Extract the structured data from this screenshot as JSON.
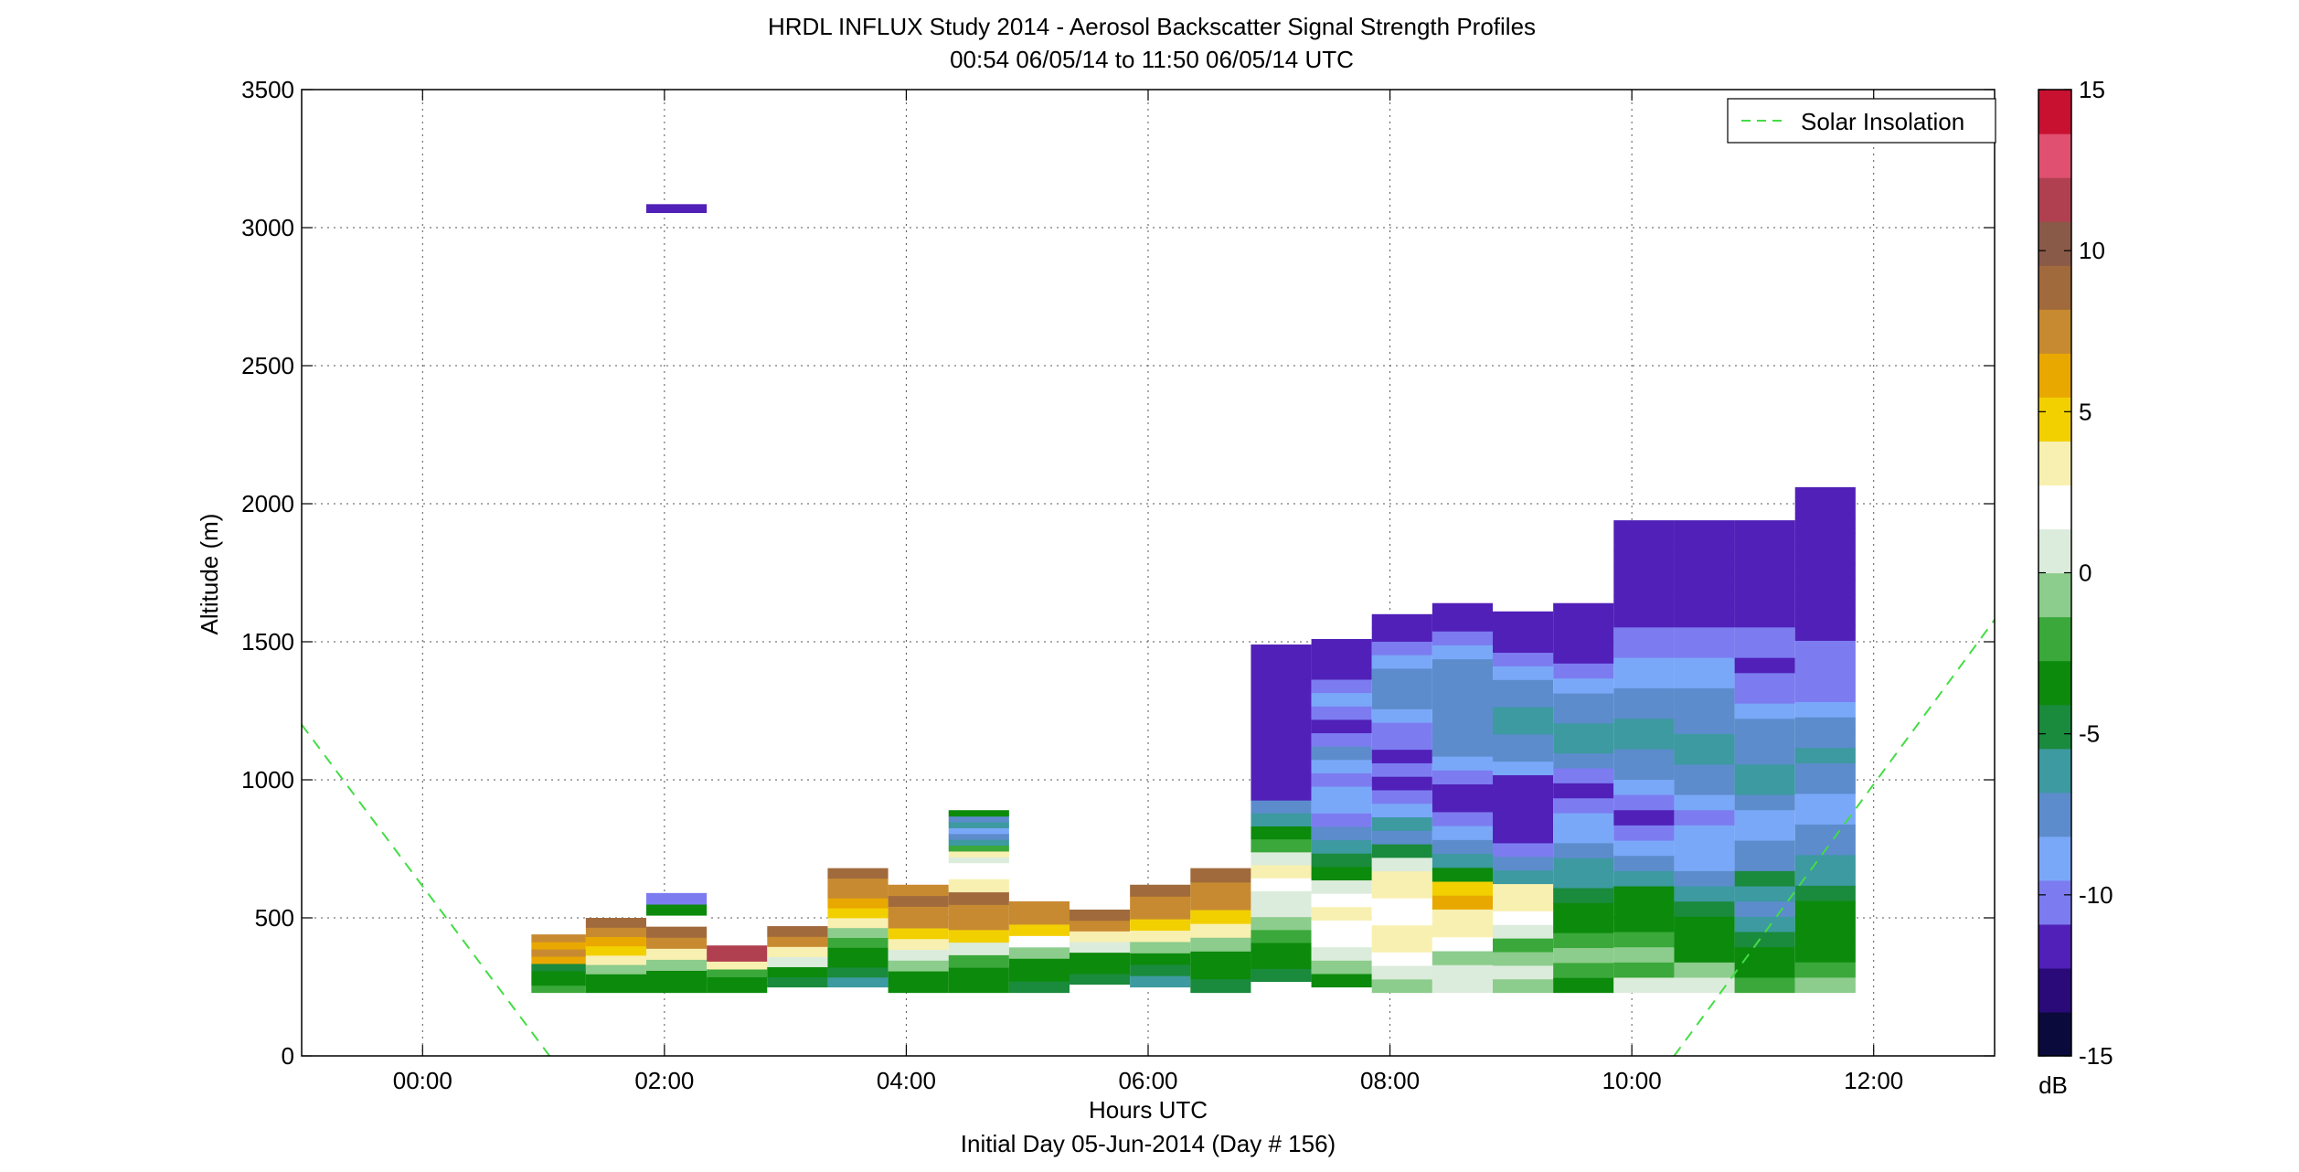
{
  "figure": {
    "title_line1": "HRDL INFLUX Study 2014 - Aerosol Backscatter Signal Strength Profiles",
    "title_line2": "00:54 06/05/14 to 11:50 06/05/14  UTC",
    "footer": "Initial Day 05-Jun-2014 (Day # 156)"
  },
  "chart_data": {
    "type": "heatmap",
    "title": "HRDL INFLUX Study 2014 - Aerosol Backscatter Signal Strength Profiles",
    "subtitle": "00:54 06/05/14 to 11:50 06/05/14  UTC",
    "xlabel": "Hours UTC",
    "ylabel": "Altitude (m)",
    "xlim": [
      -1,
      13
    ],
    "ylim": [
      0,
      3500
    ],
    "x_ticks": [
      0,
      2,
      4,
      6,
      8,
      10,
      12
    ],
    "x_tick_labels": [
      "00:00",
      "02:00",
      "04:00",
      "06:00",
      "08:00",
      "10:00",
      "12:00"
    ],
    "y_ticks": [
      0,
      500,
      1000,
      1500,
      2000,
      2500,
      3000,
      3500
    ],
    "y_tick_labels": [
      "0",
      "500",
      "1000",
      "1500",
      "2000",
      "2500",
      "3000",
      "3500"
    ],
    "grid": true,
    "colorbar": {
      "label": "dB",
      "min": -15,
      "max": 15,
      "ticks": [
        15,
        10,
        5,
        0,
        -5,
        -10,
        -15
      ],
      "tick_labels": [
        "15",
        "10",
        "5",
        "0",
        "-5",
        "-10",
        "-15"
      ],
      "colors": [
        "#0a0a3c",
        "#2a0a78",
        "#5020b8",
        "#7c7cf0",
        "#7aa8f8",
        "#5c8ccc",
        "#3c9aa0",
        "#1a8a3c",
        "#0c8a0c",
        "#3aa83a",
        "#8ccc8c",
        "#dcecdc",
        "#ffffff",
        "#f8f0b0",
        "#f2d000",
        "#e8a800",
        "#c88a30",
        "#a06a3c",
        "#8a5a48",
        "#b04050",
        "#e05070",
        "#c81030"
      ]
    },
    "series": [
      {
        "name": "Solar Insolation",
        "style": "dashed",
        "color": "#44dd44",
        "segments": [
          {
            "x": [
              -1.0,
              1.05
            ],
            "y": [
              1200,
              0
            ]
          },
          {
            "x": [
              10.35,
              13.0
            ],
            "y": [
              0,
              1580
            ]
          }
        ]
      }
    ],
    "legend": {
      "entries": [
        "Solar Insolation"
      ],
      "position": "top-right"
    },
    "profiles": [
      {
        "x0": 0.9,
        "x1": 1.35,
        "bottom": 230,
        "top": 440,
        "bands": [
          [
            -2,
            -4,
            -3,
            -5
          ],
          [
            6,
            7,
            6,
            8
          ]
        ]
      },
      {
        "x0": 1.35,
        "x1": 1.85,
        "bottom": 230,
        "top": 500,
        "bands": [
          [
            -4,
            -3,
            -1,
            3
          ],
          [
            5,
            6,
            7,
            9
          ]
        ]
      },
      {
        "x0": 1.85,
        "x1": 2.35,
        "bottom": 230,
        "top": 590,
        "bands": [
          [
            -4,
            -3,
            -1,
            4
          ],
          [
            8,
            9,
            2,
            -4
          ],
          [
            -10
          ]
        ]
      },
      {
        "x0": 2.35,
        "x1": 2.85,
        "bottom": 230,
        "top": 400,
        "bands": [
          [
            -4,
            -3,
            -2,
            3,
            11,
            12
          ]
        ]
      },
      {
        "x0": 2.85,
        "x1": 3.35,
        "bottom": 250,
        "top": 470,
        "bands": [
          [
            -5,
            -3,
            1,
            4,
            7,
            9
          ]
        ]
      },
      {
        "x0": 3.35,
        "x1": 3.85,
        "bottom": 250,
        "top": 680,
        "bands": [
          [
            -6,
            -5,
            -4,
            -3,
            -2,
            -1,
            3,
            5,
            6,
            7,
            8,
            9
          ]
        ]
      },
      {
        "x0": 3.85,
        "x1": 4.35,
        "bottom": 230,
        "top": 620,
        "bands": [
          [
            -4,
            -3,
            -1,
            0,
            3,
            5,
            7,
            8,
            9,
            8
          ]
        ]
      },
      {
        "x0": 4.35,
        "x1": 4.85,
        "bottom": 230,
        "top": 640,
        "bands": [
          [
            -4,
            -3,
            -2,
            1,
            5,
            7,
            8,
            9,
            4
          ]
        ]
      },
      {
        "x0": 4.35,
        "x1": 4.85,
        "bottom": 700,
        "top": 890,
        "bands": [
          [
            1,
            3,
            -2,
            -6,
            -8,
            -9,
            -6,
            -7,
            -3
          ]
        ]
      },
      {
        "x0": 4.85,
        "x1": 5.35,
        "bottom": 230,
        "top": 560,
        "bands": [
          [
            -5,
            -4,
            -3,
            -1,
            2,
            5,
            7,
            8
          ]
        ]
      },
      {
        "x0": 5.35,
        "x1": 5.85,
        "bottom": 260,
        "top": 530,
        "bands": [
          [
            -5,
            -4,
            -3,
            1,
            4,
            7,
            9
          ]
        ]
      },
      {
        "x0": 5.85,
        "x1": 6.35,
        "bottom": 250,
        "top": 620,
        "bands": [
          [
            -6,
            -5,
            -4,
            -1,
            3,
            5,
            7,
            8,
            9
          ]
        ]
      },
      {
        "x0": 6.35,
        "x1": 6.85,
        "bottom": 230,
        "top": 680,
        "bands": [
          [
            -5,
            -4,
            -3,
            -1,
            3,
            5,
            7,
            8,
            9
          ]
        ]
      },
      {
        "x0": 6.85,
        "x1": 7.35,
        "bottom": 270,
        "top": 1490,
        "bands": [
          [
            -5,
            -4,
            -3,
            -2,
            -1,
            0,
            1,
            2,
            3,
            1,
            -2,
            -4,
            -6,
            -7,
            -11,
            -12,
            -12,
            -12,
            -12,
            -11,
            -12,
            -12,
            -12,
            -12,
            -12,
            -12
          ]
        ]
      },
      {
        "x0": 7.35,
        "x1": 7.85,
        "bottom": 250,
        "top": 1510,
        "bands": [
          [
            -3,
            -1,
            1,
            2,
            2,
            3,
            2,
            0,
            -3,
            -5,
            -6,
            -8,
            -10,
            -9,
            -9,
            -10,
            -9,
            -8,
            -10,
            -11,
            -10,
            -9,
            -10,
            -11,
            -12,
            -12
          ]
        ]
      },
      {
        "x0": 7.85,
        "x1": 8.35,
        "bottom": 230,
        "top": 1600,
        "bands": [
          [
            -1,
            1,
            2,
            3,
            3,
            2,
            2,
            3,
            3,
            0,
            -5,
            -7,
            -6,
            -9,
            -10,
            -11,
            -10,
            -11,
            -10,
            -10,
            -9,
            -8,
            -7,
            -7,
            -9,
            -10,
            -11,
            -12
          ]
        ]
      },
      {
        "x0": 8.35,
        "x1": 8.85,
        "bottom": 230,
        "top": 1640,
        "bands": [
          [
            1,
            0,
            -1,
            2,
            3,
            4,
            6,
            5,
            -3,
            -6,
            -8,
            -9,
            -10,
            -11,
            -11,
            -10,
            -9,
            -8,
            -7,
            -7,
            -7,
            -7,
            -8,
            -8,
            -9,
            -10,
            -11,
            -12
          ]
        ]
      },
      {
        "x0": 8.85,
        "x1": 9.35,
        "bottom": 230,
        "top": 1610,
        "bands": [
          [
            -1,
            0,
            -1,
            -2,
            1,
            2,
            3,
            3,
            -6,
            -8,
            -10,
            -11,
            -12,
            -12,
            -12,
            -11,
            -9,
            -7,
            -7,
            -6,
            -6,
            -7,
            -8,
            -9,
            -10,
            -11,
            -12,
            -12
          ]
        ]
      },
      {
        "x0": 9.35,
        "x1": 9.85,
        "bottom": 230,
        "top": 1640,
        "bands": [
          [
            -3,
            -2,
            -1,
            -2,
            -3,
            -4,
            -5,
            -6,
            -6,
            -7,
            -9,
            -9,
            -10,
            -11,
            -10,
            -8,
            -6,
            -6,
            -7,
            -8,
            -9,
            -10,
            -11,
            -11,
            -12,
            -12
          ]
        ]
      },
      {
        "x0": 9.85,
        "x1": 10.35,
        "bottom": 230,
        "top": 1940,
        "bands": [
          [
            0,
            -2,
            -1,
            -2,
            -3,
            -3,
            -4,
            -6,
            -8,
            -9,
            -10,
            -11,
            -10,
            -9,
            -8,
            -7,
            -6,
            -6,
            -7,
            -8,
            -9,
            -9,
            -10,
            -10,
            -11,
            -11,
            -12,
            -12,
            -12,
            -12,
            -12
          ]
        ]
      },
      {
        "x0": 10.35,
        "x1": 10.85,
        "bottom": 230,
        "top": 1940,
        "bands": [
          [
            1,
            -1,
            -3,
            -4,
            -4,
            -5,
            -6,
            -8,
            -9,
            -9,
            -9,
            -10,
            -9,
            -8,
            -7,
            -6,
            -6,
            -7,
            -7,
            -8,
            -9,
            -9,
            -10,
            -10,
            -11,
            -11,
            -12,
            -12,
            -12,
            -12,
            -12
          ]
        ]
      },
      {
        "x0": 10.85,
        "x1": 11.35,
        "bottom": 230,
        "top": 1940,
        "bands": [
          [
            -2,
            -3,
            -4,
            -5,
            -6,
            -7,
            -6,
            -5,
            -7,
            -8,
            -9,
            -9,
            -7,
            -6,
            -6,
            -7,
            -7,
            -8,
            -9,
            -10,
            -10,
            -11,
            -10,
            -10,
            -11,
            -11,
            -12,
            -12,
            -12,
            -12,
            -12
          ]
        ]
      },
      {
        "x0": 11.35,
        "x1": 11.85,
        "bottom": 230,
        "top": 2060,
        "bands": [
          [
            -1,
            -2,
            -3,
            -3,
            -4,
            -4,
            -5,
            -6,
            -6,
            -7,
            -8,
            -9,
            -9,
            -8,
            -7,
            -6,
            -7,
            -8,
            -9,
            -10,
            -10,
            -10,
            -10,
            -11,
            -11,
            -11,
            -11,
            -12,
            -12,
            -12,
            -12,
            -12,
            -12
          ]
        ]
      },
      {
        "x0": 1.85,
        "x1": 2.35,
        "bottom": 3055,
        "top": 3085,
        "bands": [
          [
            -12
          ]
        ]
      }
    ]
  }
}
